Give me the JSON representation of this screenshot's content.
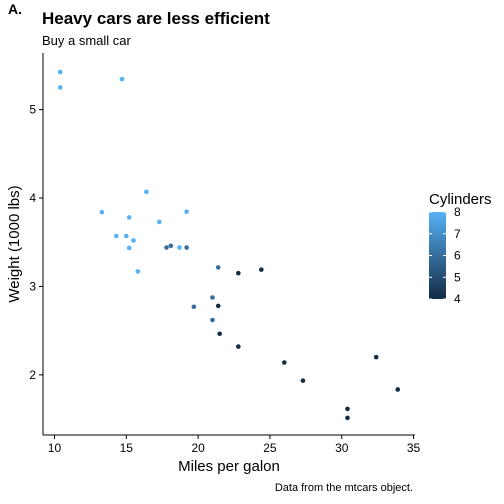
{
  "tag": "A.",
  "chart_data": {
    "type": "scatter",
    "title": "Heavy cars are less efficient",
    "subtitle": "Buy a small car",
    "xlabel": "Miles per galon",
    "ylabel": "Weight (1000 lbs)",
    "caption": "Data from the mtcars object.",
    "xlim": [
      9.2,
      35.1
    ],
    "ylim": [
      1.32,
      5.64
    ],
    "xticks": [
      10,
      15,
      20,
      25,
      30,
      35
    ],
    "yticks": [
      2,
      3,
      4,
      5
    ],
    "grid": false,
    "legend": {
      "title": "Cylinders",
      "position": "right",
      "type": "colorbar",
      "range": [
        4,
        8
      ],
      "ticks": [
        4,
        5,
        6,
        7,
        8
      ],
      "low_color": "#132B43",
      "high_color": "#56B1F7"
    },
    "points": [
      {
        "x": 21.0,
        "y": 2.62,
        "cyl": 6
      },
      {
        "x": 21.0,
        "y": 2.875,
        "cyl": 6
      },
      {
        "x": 22.8,
        "y": 2.32,
        "cyl": 4
      },
      {
        "x": 21.4,
        "y": 3.215,
        "cyl": 6
      },
      {
        "x": 18.7,
        "y": 3.44,
        "cyl": 8
      },
      {
        "x": 18.1,
        "y": 3.46,
        "cyl": 6
      },
      {
        "x": 14.3,
        "y": 3.57,
        "cyl": 8
      },
      {
        "x": 24.4,
        "y": 3.19,
        "cyl": 4
      },
      {
        "x": 22.8,
        "y": 3.15,
        "cyl": 4
      },
      {
        "x": 19.2,
        "y": 3.44,
        "cyl": 6
      },
      {
        "x": 17.8,
        "y": 3.44,
        "cyl": 6
      },
      {
        "x": 16.4,
        "y": 4.07,
        "cyl": 8
      },
      {
        "x": 17.3,
        "y": 3.73,
        "cyl": 8
      },
      {
        "x": 15.2,
        "y": 3.78,
        "cyl": 8
      },
      {
        "x": 10.4,
        "y": 5.25,
        "cyl": 8
      },
      {
        "x": 10.4,
        "y": 5.424,
        "cyl": 8
      },
      {
        "x": 14.7,
        "y": 5.345,
        "cyl": 8
      },
      {
        "x": 32.4,
        "y": 2.2,
        "cyl": 4
      },
      {
        "x": 30.4,
        "y": 1.615,
        "cyl": 4
      },
      {
        "x": 33.9,
        "y": 1.835,
        "cyl": 4
      },
      {
        "x": 21.5,
        "y": 2.465,
        "cyl": 4
      },
      {
        "x": 15.5,
        "y": 3.52,
        "cyl": 8
      },
      {
        "x": 15.2,
        "y": 3.435,
        "cyl": 8
      },
      {
        "x": 13.3,
        "y": 3.84,
        "cyl": 8
      },
      {
        "x": 19.2,
        "y": 3.845,
        "cyl": 8
      },
      {
        "x": 27.3,
        "y": 1.935,
        "cyl": 4
      },
      {
        "x": 26.0,
        "y": 2.14,
        "cyl": 4
      },
      {
        "x": 30.4,
        "y": 1.513,
        "cyl": 4
      },
      {
        "x": 15.8,
        "y": 3.17,
        "cyl": 8
      },
      {
        "x": 19.7,
        "y": 2.77,
        "cyl": 6
      },
      {
        "x": 15.0,
        "y": 3.57,
        "cyl": 8
      },
      {
        "x": 21.4,
        "y": 2.78,
        "cyl": 4
      }
    ]
  }
}
